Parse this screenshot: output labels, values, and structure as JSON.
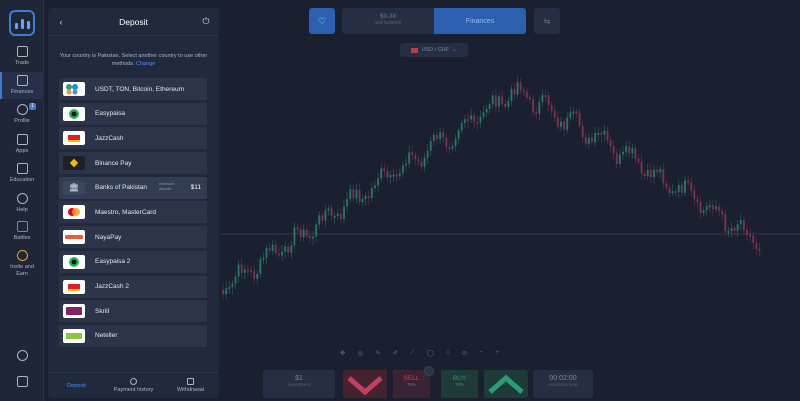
{
  "sidebar": {
    "items": [
      {
        "label": "Trade",
        "icon": "chart-icon"
      },
      {
        "label": "Finances",
        "icon": "wallet-icon"
      },
      {
        "label": "Profile",
        "icon": "user-icon",
        "badge": "1"
      },
      {
        "label": "Apps",
        "icon": "apps-icon"
      },
      {
        "label": "Education",
        "icon": "book-icon"
      },
      {
        "label": "Help",
        "icon": "help-icon"
      },
      {
        "label": "Battles",
        "icon": "battles-icon"
      },
      {
        "label": "Invite and Earn",
        "icon": "heart-icon"
      }
    ]
  },
  "deposit": {
    "title": "Deposit",
    "notice": "Your country is Pakistan. Select another country to use other methods.",
    "change_link": "Change",
    "methods": [
      {
        "name": "USDT, TON, Bitcoin, Ethereum",
        "logo": "crypto-logo"
      },
      {
        "name": "Easypaisa",
        "logo": "easypaisa-logo"
      },
      {
        "name": "JazzCash",
        "logo": "jazzcash-logo"
      },
      {
        "name": "Binance Pay",
        "logo": "binance-logo"
      },
      {
        "name": "Banks of Pakistan",
        "logo": "bank-logo",
        "min_label": "minimum deposit",
        "min_amount": "$11"
      },
      {
        "name": "Maestro, MasterCard",
        "logo": "mastercard-logo"
      },
      {
        "name": "NayaPay",
        "logo": "nayapay-logo"
      },
      {
        "name": "Easypaisa 2",
        "logo": "easypaisa-logo"
      },
      {
        "name": "JazzCash 2",
        "logo": "jazzcash-logo"
      },
      {
        "name": "Skrill",
        "logo": "skrill-logo"
      },
      {
        "name": "Neteller",
        "logo": "neteller-logo"
      }
    ],
    "tabs": [
      "Deposit",
      "Payment history",
      "Withdrawal"
    ]
  },
  "topbar": {
    "balance_value": "$0.38",
    "balance_label": "real balance",
    "finances_label": "Finances",
    "pair_label": "USD / CHF"
  },
  "bottombar": {
    "investment_value": "$1",
    "investment_label": "investment",
    "sell_label": "SELL",
    "sell_pct": "75%",
    "buy_label": "BUY",
    "buy_pct": "75%",
    "time_value": "00:02:00",
    "time_label": "expiration time"
  },
  "colors": {
    "accent": "#3f7ad6",
    "up": "#2d9a7b",
    "down": "#c2405f"
  }
}
